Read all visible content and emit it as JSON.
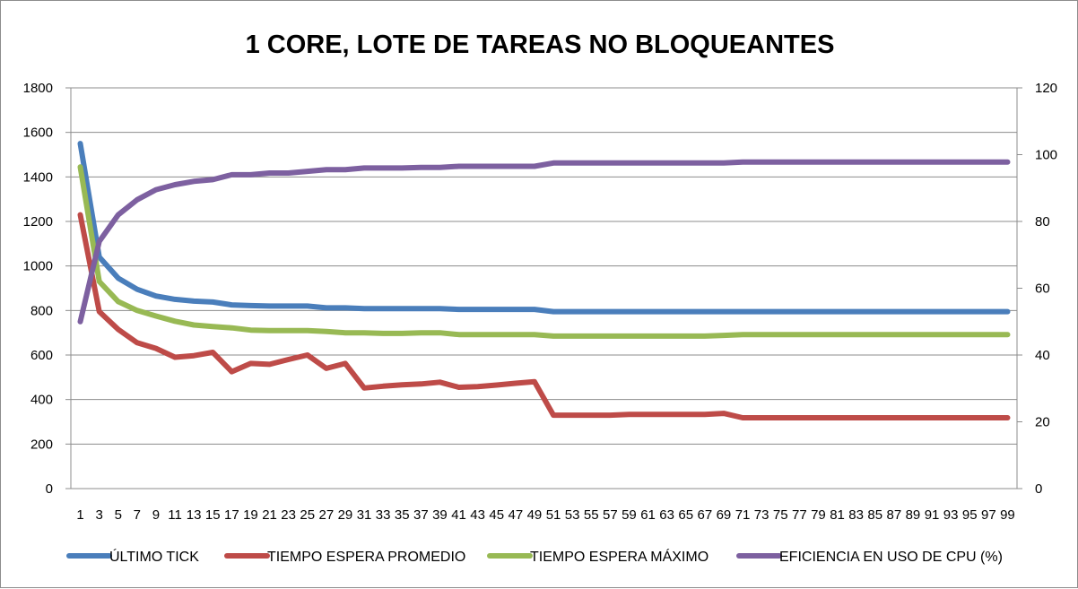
{
  "chart_data": {
    "type": "line",
    "title": "1 CORE, LOTE DE TAREAS NO BLOQUEANTES",
    "x": [
      1,
      3,
      5,
      7,
      9,
      11,
      13,
      15,
      17,
      19,
      21,
      23,
      25,
      27,
      29,
      31,
      33,
      35,
      37,
      39,
      41,
      43,
      45,
      47,
      49,
      51,
      53,
      55,
      57,
      59,
      61,
      63,
      65,
      67,
      69,
      71,
      73,
      75,
      77,
      79,
      81,
      83,
      85,
      87,
      89,
      91,
      93,
      95,
      97,
      99
    ],
    "x_tick_labels": [
      "1",
      "3",
      "5",
      "7",
      "9",
      "11",
      "13",
      "15",
      "17",
      "19",
      "21",
      "23",
      "25",
      "27",
      "29",
      "31",
      "33",
      "35",
      "37",
      "39",
      "41",
      "43",
      "45",
      "47",
      "49",
      "51",
      "53",
      "55",
      "57",
      "59",
      "61",
      "63",
      "65",
      "67",
      "69",
      "71",
      "73",
      "75",
      "77",
      "79",
      "81",
      "83",
      "85",
      "87",
      "89",
      "91",
      "93",
      "95",
      "97",
      "99"
    ],
    "ylim": [
      0,
      1800
    ],
    "yticks": [
      "0",
      "200",
      "400",
      "600",
      "800",
      "1000",
      "1200",
      "1400",
      "1600",
      "1800"
    ],
    "y2lim": [
      0,
      120
    ],
    "y2ticks": [
      "0",
      "20",
      "40",
      "60",
      "80",
      "100",
      "120"
    ],
    "grid": "horizontal",
    "legend": "bottom",
    "series": [
      {
        "name": "ÚLTIMO TICK",
        "axis": "left",
        "color": "#4a7ebb",
        "values": [
          1550,
          1040,
          945,
          895,
          865,
          850,
          842,
          838,
          825,
          822,
          820,
          820,
          820,
          812,
          812,
          808,
          808,
          808,
          808,
          808,
          805,
          805,
          805,
          805,
          805,
          795,
          795,
          795,
          795,
          795,
          795,
          795,
          795,
          795,
          795,
          795,
          795,
          795,
          795,
          795,
          795,
          795,
          795,
          795,
          795,
          795,
          795,
          795,
          795,
          795
        ]
      },
      {
        "name": "TIEMPO ESPERA PROMEDIO",
        "axis": "left",
        "color": "#be4b48",
        "values": [
          1230,
          795,
          715,
          655,
          630,
          590,
          597,
          612,
          525,
          562,
          558,
          580,
          600,
          540,
          562,
          452,
          460,
          466,
          470,
          478,
          455,
          458,
          465,
          473,
          480,
          330,
          330,
          330,
          330,
          333,
          333,
          333,
          333,
          333,
          338,
          318,
          318,
          318,
          318,
          318,
          318,
          318,
          318,
          318,
          318,
          318,
          318,
          318,
          318,
          318
        ]
      },
      {
        "name": "TIEMPO ESPERA MÁXIMO",
        "axis": "left",
        "color": "#98b954",
        "values": [
          1445,
          930,
          840,
          800,
          775,
          752,
          735,
          728,
          722,
          712,
          710,
          710,
          710,
          706,
          700,
          700,
          697,
          697,
          700,
          700,
          692,
          692,
          692,
          692,
          692,
          685,
          685,
          685,
          685,
          685,
          685,
          685,
          685,
          685,
          688,
          692,
          692,
          692,
          692,
          692,
          692,
          692,
          692,
          692,
          692,
          692,
          692,
          692,
          692,
          692
        ]
      },
      {
        "name": "EFICIENCIA EN USO DE CPU (%)",
        "axis": "right",
        "color": "#7d60a0",
        "values": [
          50,
          74,
          82,
          86.5,
          89.5,
          91,
          92,
          92.5,
          94,
          94,
          94.5,
          94.5,
          95,
          95.5,
          95.5,
          96,
          96,
          96,
          96.2,
          96.2,
          96.5,
          96.5,
          96.5,
          96.5,
          96.5,
          97.5,
          97.5,
          97.5,
          97.5,
          97.5,
          97.5,
          97.5,
          97.5,
          97.5,
          97.5,
          97.8,
          97.8,
          97.8,
          97.8,
          97.8,
          97.8,
          97.8,
          97.8,
          97.8,
          97.8,
          97.8,
          97.8,
          97.8,
          97.8,
          97.8
        ]
      }
    ]
  }
}
